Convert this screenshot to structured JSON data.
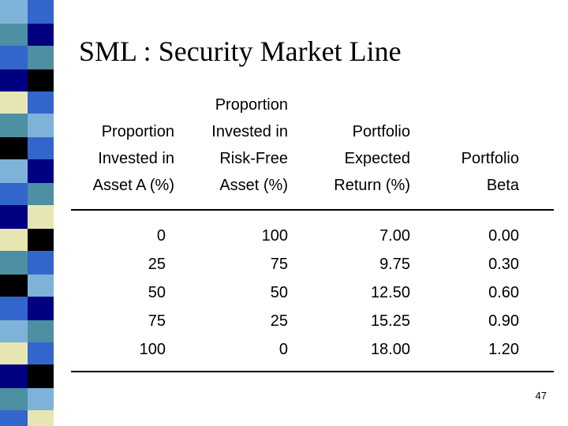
{
  "slide": {
    "title": "SML : Security Market Line",
    "page_number": "47"
  },
  "table": {
    "headers": {
      "col1": "Proportion\nInvested in\nAsset A (%)",
      "col2": "Proportion\nInvested in\nRisk-Free\nAsset (%)",
      "col3": "Portfolio\nExpected\nReturn (%)",
      "col4": "Portfolio\nBeta"
    },
    "columns": {
      "asset_a": [
        "0",
        "25",
        "50",
        "75",
        "100"
      ],
      "risk_free": [
        "100",
        "75",
        "50",
        "25",
        "0"
      ],
      "expected_return": [
        "7.00",
        "9.75",
        "12.50",
        "15.25",
        "18.00"
      ],
      "beta": [
        "0.00",
        "0.30",
        "0.60",
        "0.90",
        "1.20"
      ]
    }
  },
  "colors": {
    "stripe_palette": [
      "#3366cc",
      "#000080",
      "#4d8fa3",
      "#000000",
      "#e6e6b3",
      "#7fb2d9"
    ]
  }
}
